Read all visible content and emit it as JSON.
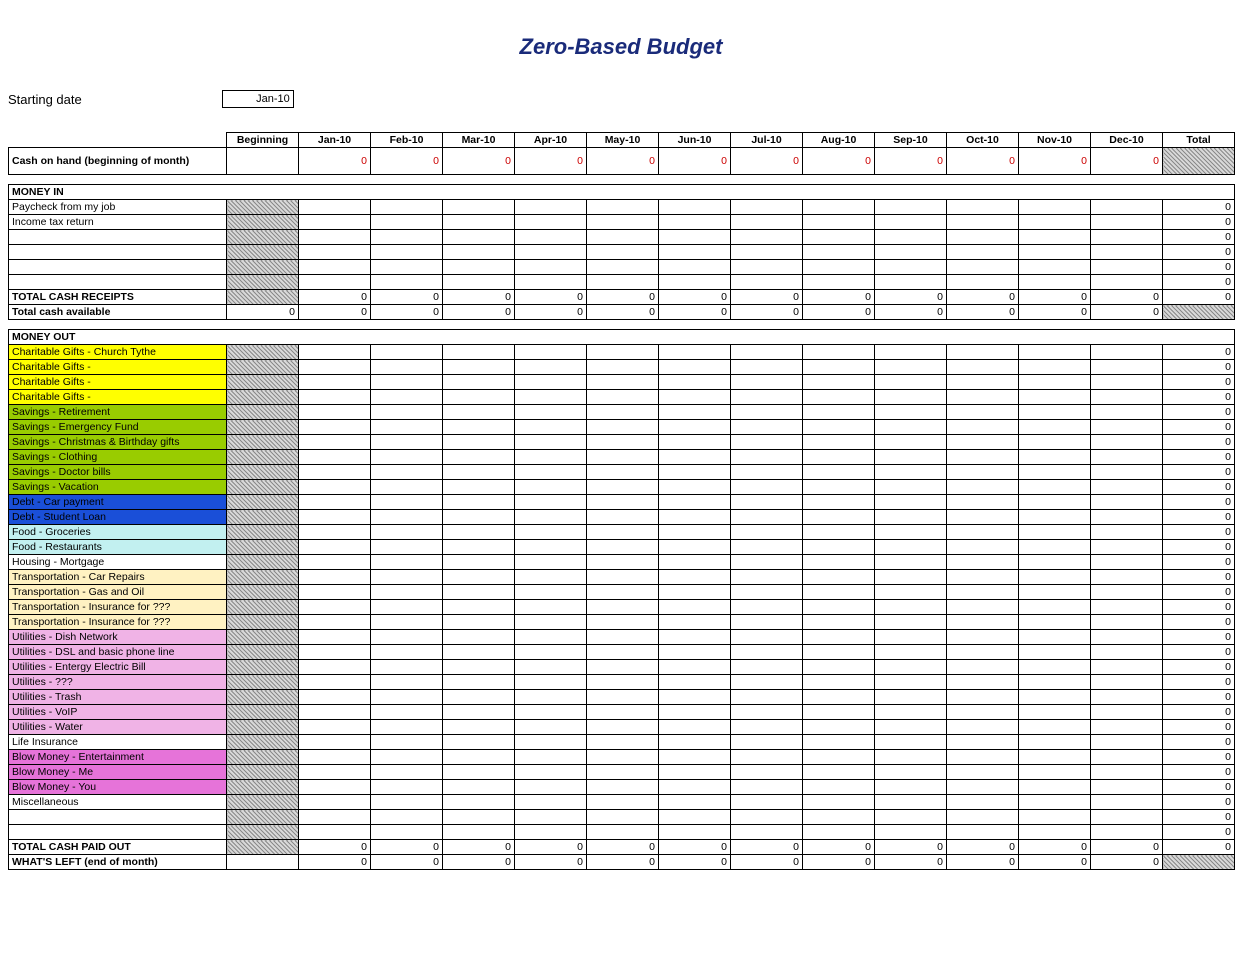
{
  "title": "Zero-Based Budget",
  "starting_date_label": "Starting date",
  "starting_date_value": "Jan-10",
  "columns": [
    "Beginning",
    "Jan-10",
    "Feb-10",
    "Mar-10",
    "Apr-10",
    "May-10",
    "Jun-10",
    "Jul-10",
    "Aug-10",
    "Sep-10",
    "Oct-10",
    "Nov-10",
    "Dec-10",
    "Total"
  ],
  "cash_on_hand_label": "Cash on hand (beginning of month)",
  "zero": "0",
  "money_in": {
    "header": "MONEY IN",
    "rows": [
      {
        "label": "Paycheck from my job"
      },
      {
        "label": "Income tax return"
      },
      {
        "label": ""
      },
      {
        "label": ""
      },
      {
        "label": ""
      },
      {
        "label": ""
      }
    ],
    "total_receipts": "TOTAL CASH RECEIPTS",
    "total_available": "Total cash available"
  },
  "money_out": {
    "header": "MONEY OUT",
    "rows": [
      {
        "label": "Charitable Gifts - Church Tythe",
        "bg": "#ffff00"
      },
      {
        "label": "Charitable Gifts -",
        "bg": "#ffff00"
      },
      {
        "label": "Charitable Gifts -",
        "bg": "#ffff00"
      },
      {
        "label": "Charitable Gifts -",
        "bg": "#ffff00"
      },
      {
        "label": "Savings - Retirement",
        "bg": "#99cc00"
      },
      {
        "label": "Savings - Emergency Fund",
        "bg": "#99cc00"
      },
      {
        "label": "Savings - Christmas & Birthday gifts",
        "bg": "#99cc00"
      },
      {
        "label": "Savings - Clothing",
        "bg": "#99cc00"
      },
      {
        "label": "Savings - Doctor bills",
        "bg": "#99cc00"
      },
      {
        "label": "Savings - Vacation",
        "bg": "#99cc00"
      },
      {
        "label": "Debt - Car payment",
        "bg": "#1a4fd8"
      },
      {
        "label": "Debt - Student Loan",
        "bg": "#1a4fd8"
      },
      {
        "label": "Food - Groceries",
        "bg": "#c2f0f0"
      },
      {
        "label": "Food - Restaurants",
        "bg": "#c2f0f0"
      },
      {
        "label": "Housing - Mortgage",
        "bg": "#ffffff"
      },
      {
        "label": "Transportation - Car Repairs",
        "bg": "#fff2c2"
      },
      {
        "label": "Transportation - Gas and Oil",
        "bg": "#fff2c2"
      },
      {
        "label": "Transportation - Insurance for ???",
        "bg": "#fff2c2"
      },
      {
        "label": "Transportation - Insurance for ???",
        "bg": "#fff2c2"
      },
      {
        "label": "Utilities - Dish Network",
        "bg": "#f0b3e6"
      },
      {
        "label": "Utilities - DSL and basic phone line",
        "bg": "#f0b3e6"
      },
      {
        "label": "Utilities - Entergy Electric Bill",
        "bg": "#f0b3e6"
      },
      {
        "label": "Utilities - ???",
        "bg": "#f0b3e6"
      },
      {
        "label": "Utilities - Trash",
        "bg": "#f0b3e6"
      },
      {
        "label": "Utilities - VoIP",
        "bg": "#f0b3e6"
      },
      {
        "label": "Utilities - Water",
        "bg": "#f0b3e6"
      },
      {
        "label": "Life Insurance",
        "bg": "#ffffff"
      },
      {
        "label": "Blow Money - Entertainment",
        "bg": "#e673d9"
      },
      {
        "label": "Blow Money - Me",
        "bg": "#e673d9"
      },
      {
        "label": "Blow Money - You",
        "bg": "#e673d9"
      },
      {
        "label": "Miscellaneous",
        "bg": "#ffffff"
      },
      {
        "label": "",
        "bg": "#ffffff"
      },
      {
        "label": "",
        "bg": "#ffffff"
      }
    ],
    "total_paid_out": "TOTAL CASH PAID OUT",
    "whats_left": "WHAT'S LEFT (end of month)"
  },
  "colors": {
    "title": "#1a2b7a",
    "red_text": "#cc0000",
    "border": "#000000",
    "yellow": "#ffff00",
    "green": "#99cc00",
    "blue": "#1a4fd8",
    "cyan": "#c2f0f0",
    "cream": "#fff2c2",
    "lightpink": "#f0b3e6",
    "pink": "#e673d9"
  }
}
